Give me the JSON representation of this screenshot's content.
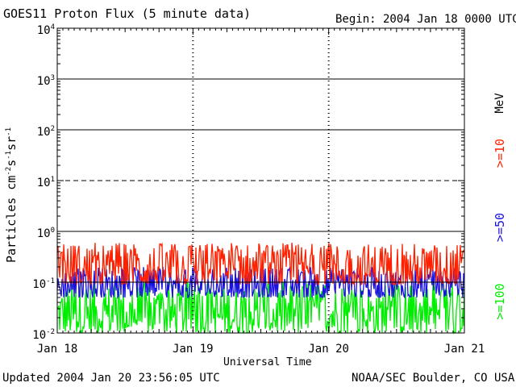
{
  "header": {
    "title": "GOES11 Proton Flux (5 minute data)",
    "begin": "Begin: 2004 Jan 18 0000 UTC"
  },
  "footer": {
    "updated": "Updated 2004 Jan 20 23:56:05 UTC",
    "credit": "NOAA/SEC Boulder, CO USA"
  },
  "chart_data": {
    "type": "line",
    "title": "GOES11 Proton Flux (5 minute data)",
    "xlabel": "Universal Time",
    "ylabel_parts": [
      "Particles cm",
      "-2",
      "s",
      "-1",
      "sr",
      "-1"
    ],
    "y_scale": "log",
    "ylim": [
      0.01,
      10000
    ],
    "y_ticks": [
      {
        "value": 0.01,
        "base": "10",
        "exp": "-2"
      },
      {
        "value": 0.1,
        "base": "10",
        "exp": "-1"
      },
      {
        "value": 1,
        "base": "10",
        "exp": "0"
      },
      {
        "value": 10,
        "base": "10",
        "exp": "1"
      },
      {
        "value": 100,
        "base": "10",
        "exp": "2"
      },
      {
        "value": 1000,
        "base": "10",
        "exp": "3"
      },
      {
        "value": 10000,
        "base": "10",
        "exp": "4"
      }
    ],
    "x_ticks": [
      "Jan 18",
      "Jan 19",
      "Jan 20",
      "Jan 21"
    ],
    "x_range_days": [
      0,
      3
    ],
    "reference_lines": [
      {
        "value": 0.1,
        "style": "solid"
      },
      {
        "value": 1,
        "style": "solid"
      },
      {
        "value": 10,
        "style": "dashed"
      },
      {
        "value": 100,
        "style": "solid"
      },
      {
        "value": 1000,
        "style": "solid"
      }
    ],
    "legend_unit": "MeV",
    "series": [
      {
        "name": ">=10",
        "color": "#ff2000",
        "typical_range": [
          0.09,
          0.6
        ]
      },
      {
        "name": ">=50",
        "color": "#1a10e0",
        "typical_range": [
          0.05,
          0.2
        ]
      },
      {
        "name": ">=100",
        "color": "#00ee00",
        "typical_range": [
          0.01,
          0.1
        ]
      }
    ]
  }
}
